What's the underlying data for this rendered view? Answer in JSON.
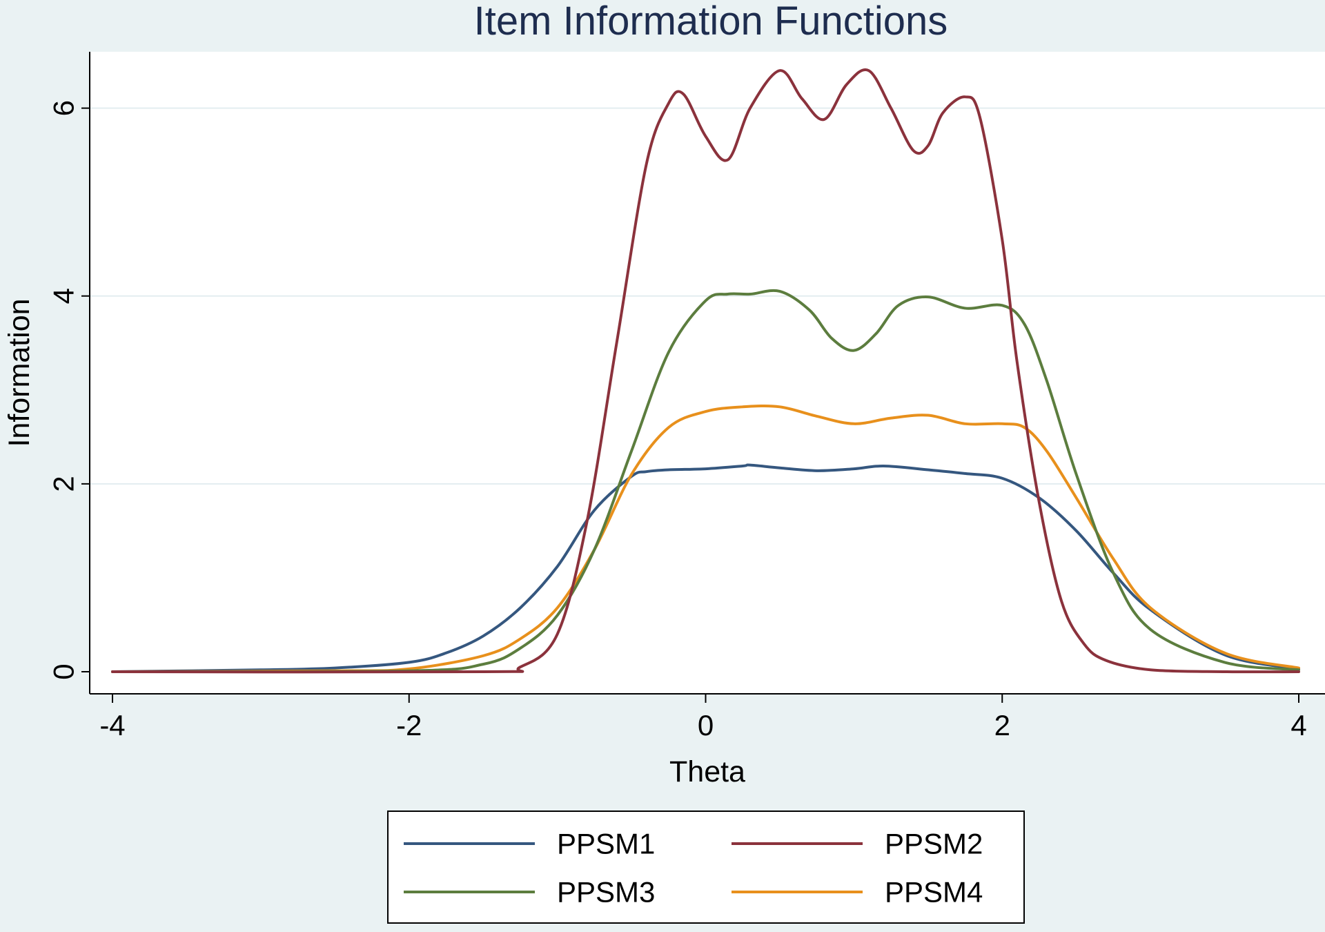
{
  "chart_data": {
    "type": "line",
    "title": "Item Information Functions",
    "xlabel": "Theta",
    "ylabel": "Information",
    "xlim": [
      -4,
      4
    ],
    "ylim": [
      0,
      6.6
    ],
    "xticks": [
      -4,
      -2,
      0,
      2,
      4
    ],
    "yticks": [
      0,
      2,
      4,
      6
    ],
    "grid": "horizontal",
    "legend": "bottom-center",
    "series": [
      {
        "name": "PPSM1",
        "color": "#35577f",
        "x": [
          -4,
          -3,
          -2.5,
          -2,
          -1.75,
          -1.5,
          -1.25,
          -1,
          -0.75,
          -0.5,
          -0.4,
          -0.25,
          0,
          0.25,
          0.3,
          0.5,
          0.75,
          1,
          1.2,
          1.5,
          1.75,
          2,
          2.25,
          2.5,
          2.75,
          3,
          3.5,
          4
        ],
        "y": [
          0,
          0.02,
          0.04,
          0.1,
          0.2,
          0.38,
          0.68,
          1.12,
          1.72,
          2.08,
          2.13,
          2.15,
          2.16,
          2.19,
          2.2,
          2.17,
          2.14,
          2.16,
          2.19,
          2.15,
          2.11,
          2.06,
          1.85,
          1.5,
          1.05,
          0.66,
          0.18,
          0.03
        ]
      },
      {
        "name": "PPSM2",
        "color": "#8b323c",
        "x": [
          -4,
          -1.5,
          -1.25,
          -1,
          -0.8,
          -0.6,
          -0.4,
          -0.25,
          -0.15,
          0,
          0.15,
          0.3,
          0.5,
          0.65,
          0.8,
          0.95,
          1.1,
          1.25,
          1.4,
          1.5,
          1.6,
          1.75,
          1.85,
          2,
          2.1,
          2.25,
          2.4,
          2.55,
          2.7,
          3,
          3.5,
          4
        ],
        "y": [
          0,
          0,
          0.05,
          0.4,
          1.6,
          3.5,
          5.4,
          6.05,
          6.15,
          5.7,
          5.45,
          6.0,
          6.4,
          6.1,
          5.88,
          6.25,
          6.4,
          6.0,
          5.55,
          5.6,
          5.95,
          6.12,
          5.9,
          4.6,
          3.3,
          1.8,
          0.75,
          0.3,
          0.12,
          0.02,
          0,
          0
        ]
      },
      {
        "name": "PPSM3",
        "color": "#5c7d3e",
        "x": [
          -4,
          -2,
          -1.5,
          -1.25,
          -1,
          -0.75,
          -0.5,
          -0.25,
          0,
          0.15,
          0.3,
          0.5,
          0.7,
          0.85,
          1,
          1.15,
          1.3,
          1.5,
          1.75,
          2,
          2.15,
          2.3,
          2.5,
          2.75,
          3,
          3.5,
          4
        ],
        "y": [
          0,
          0.01,
          0.08,
          0.25,
          0.6,
          1.3,
          2.35,
          3.4,
          3.95,
          4.02,
          4.02,
          4.05,
          3.85,
          3.55,
          3.42,
          3.6,
          3.9,
          3.99,
          3.87,
          3.9,
          3.7,
          3.1,
          2.1,
          1.05,
          0.45,
          0.1,
          0.02
        ]
      },
      {
        "name": "PPSM4",
        "color": "#e8901c",
        "x": [
          -4,
          -2.5,
          -2,
          -1.5,
          -1.25,
          -1,
          -0.75,
          -0.5,
          -0.25,
          0,
          0.25,
          0.5,
          0.75,
          1,
          1.25,
          1.5,
          1.75,
          2,
          2.15,
          2.3,
          2.5,
          2.75,
          3,
          3.5,
          4
        ],
        "y": [
          0,
          0.01,
          0.03,
          0.17,
          0.35,
          0.68,
          1.3,
          2.1,
          2.6,
          2.77,
          2.82,
          2.82,
          2.72,
          2.64,
          2.7,
          2.73,
          2.64,
          2.64,
          2.6,
          2.35,
          1.85,
          1.2,
          0.68,
          0.2,
          0.04
        ]
      }
    ]
  }
}
